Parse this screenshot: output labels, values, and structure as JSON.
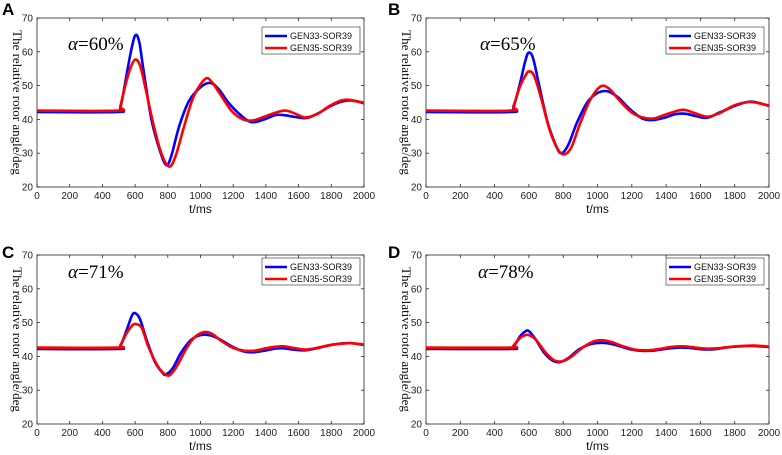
{
  "chart_data": [
    {
      "panel_label": "A",
      "type": "line",
      "annotation": "α=60%",
      "xlabel": "t/ms",
      "ylabel": "The relative rotor angle/deg",
      "xlim": [
        0,
        2000
      ],
      "ylim": [
        20,
        70
      ],
      "xticks": [
        "0",
        "200",
        "400",
        "600",
        "800",
        "1000",
        "1200",
        "1400",
        "1600",
        "1800",
        "2000"
      ],
      "yticks": [
        "20",
        "30",
        "40",
        "50",
        "60",
        "70"
      ],
      "series": [
        {
          "name": "GEN33-SOR39",
          "color": "#0000ff",
          "points": [
            [
              0,
              42.2
            ],
            [
              490,
              42.2
            ],
            [
              510,
              43.5
            ],
            [
              540,
              51
            ],
            [
              570,
              59
            ],
            [
              600,
              64.8
            ],
            [
              625,
              63
            ],
            [
              650,
              55
            ],
            [
              700,
              40
            ],
            [
              750,
              31
            ],
            [
              790,
              26.5
            ],
            [
              820,
              29
            ],
            [
              870,
              38
            ],
            [
              930,
              45.5
            ],
            [
              1000,
              49.5
            ],
            [
              1060,
              50.8
            ],
            [
              1110,
              49
            ],
            [
              1170,
              45
            ],
            [
              1240,
              41.5
            ],
            [
              1310,
              39.2
            ],
            [
              1390,
              40
            ],
            [
              1460,
              41.3
            ],
            [
              1520,
              41.2
            ],
            [
              1580,
              40.7
            ],
            [
              1650,
              40.4
            ],
            [
              1720,
              41.8
            ],
            [
              1790,
              43.8
            ],
            [
              1860,
              45.2
            ],
            [
              1920,
              45.6
            ],
            [
              2000,
              44.8
            ]
          ]
        },
        {
          "name": "GEN35-SOR39",
          "color": "#ff0000",
          "points": [
            [
              0,
              42.6
            ],
            [
              490,
              42.6
            ],
            [
              510,
              44
            ],
            [
              540,
              50
            ],
            [
              570,
              55
            ],
            [
              600,
              57.7
            ],
            [
              630,
              56
            ],
            [
              660,
              50
            ],
            [
              710,
              39
            ],
            [
              760,
              30
            ],
            [
              810,
              26
            ],
            [
              850,
              29.5
            ],
            [
              900,
              38
            ],
            [
              960,
              47
            ],
            [
              1030,
              52
            ],
            [
              1070,
              51
            ],
            [
              1120,
              47.5
            ],
            [
              1190,
              42.5
            ],
            [
              1260,
              40
            ],
            [
              1320,
              39.7
            ],
            [
              1390,
              40.8
            ],
            [
              1460,
              42
            ],
            [
              1520,
              42.6
            ],
            [
              1580,
              41.7
            ],
            [
              1640,
              40.6
            ],
            [
              1710,
              41.5
            ],
            [
              1790,
              44
            ],
            [
              1860,
              45.6
            ],
            [
              1910,
              45.8
            ],
            [
              2000,
              44.9
            ]
          ]
        }
      ]
    },
    {
      "panel_label": "B",
      "type": "line",
      "annotation": "α=65%",
      "xlabel": "t/ms",
      "ylabel": "The relative rotor angle/deg",
      "xlim": [
        0,
        2000
      ],
      "ylim": [
        20,
        70
      ],
      "xticks": [
        "0",
        "200",
        "400",
        "600",
        "800",
        "1000",
        "1200",
        "1400",
        "1600",
        "1800",
        "2000"
      ],
      "yticks": [
        "20",
        "30",
        "40",
        "50",
        "60",
        "70"
      ],
      "series": [
        {
          "name": "GEN33-SOR39",
          "color": "#0000ff",
          "points": [
            [
              0,
              42.2
            ],
            [
              490,
              42.2
            ],
            [
              510,
              43.5
            ],
            [
              550,
              51
            ],
            [
              580,
              57.5
            ],
            [
              600,
              59.8
            ],
            [
              625,
              58
            ],
            [
              660,
              50
            ],
            [
              710,
              39
            ],
            [
              760,
              32
            ],
            [
              790,
              30
            ],
            [
              830,
              32.5
            ],
            [
              880,
              39
            ],
            [
              940,
              45
            ],
            [
              1000,
              47.8
            ],
            [
              1060,
              48.3
            ],
            [
              1120,
              46.5
            ],
            [
              1190,
              43
            ],
            [
              1260,
              40.3
            ],
            [
              1320,
              39.8
            ],
            [
              1390,
              40.5
            ],
            [
              1450,
              41.5
            ],
            [
              1510,
              41.7
            ],
            [
              1570,
              41
            ],
            [
              1640,
              40.5
            ],
            [
              1710,
              42
            ],
            [
              1790,
              43.8
            ],
            [
              1860,
              45
            ],
            [
              1910,
              45.2
            ],
            [
              2000,
              44
            ]
          ]
        },
        {
          "name": "GEN35-SOR39",
          "color": "#ff0000",
          "points": [
            [
              0,
              42.6
            ],
            [
              490,
              42.6
            ],
            [
              510,
              44
            ],
            [
              550,
              50
            ],
            [
              580,
              53
            ],
            [
              600,
              54.2
            ],
            [
              630,
              53
            ],
            [
              670,
              46.5
            ],
            [
              720,
              37
            ],
            [
              770,
              31
            ],
            [
              810,
              29.7
            ],
            [
              850,
              32
            ],
            [
              900,
              39
            ],
            [
              960,
              46
            ],
            [
              1020,
              49.8
            ],
            [
              1070,
              49
            ],
            [
              1130,
              45.5
            ],
            [
              1200,
              42
            ],
            [
              1270,
              40.5
            ],
            [
              1330,
              40.3
            ],
            [
              1400,
              41.5
            ],
            [
              1470,
              42.6
            ],
            [
              1510,
              42.8
            ],
            [
              1570,
              41.8
            ],
            [
              1640,
              40.8
            ],
            [
              1710,
              41.8
            ],
            [
              1790,
              44
            ],
            [
              1860,
              45
            ],
            [
              1910,
              45.1
            ],
            [
              2000,
              44.1
            ]
          ]
        }
      ]
    },
    {
      "panel_label": "C",
      "type": "line",
      "annotation": "α=71%",
      "xlabel": "t/ms",
      "ylabel": "The relative rotor angle/deg",
      "xlim": [
        0,
        2000
      ],
      "ylim": [
        20,
        70
      ],
      "xticks": [
        "0",
        "200",
        "400",
        "600",
        "800",
        "1000",
        "1200",
        "1400",
        "1600",
        "1800",
        "2000"
      ],
      "yticks": [
        "20",
        "30",
        "40",
        "50",
        "60",
        "70"
      ],
      "series": [
        {
          "name": "GEN33-SOR39",
          "color": "#0000ff",
          "points": [
            [
              0,
              42.2
            ],
            [
              490,
              42.2
            ],
            [
              510,
              43
            ],
            [
              550,
              48
            ],
            [
              580,
              52
            ],
            [
              600,
              52.8
            ],
            [
              630,
              51
            ],
            [
              670,
              45
            ],
            [
              720,
              38.5
            ],
            [
              770,
              35
            ],
            [
              790,
              34.7
            ],
            [
              830,
              36.5
            ],
            [
              880,
              41
            ],
            [
              940,
              44.8
            ],
            [
              1000,
              46.3
            ],
            [
              1060,
              46.2
            ],
            [
              1120,
              45
            ],
            [
              1190,
              43
            ],
            [
              1260,
              41.5
            ],
            [
              1320,
              41.2
            ],
            [
              1390,
              41.7
            ],
            [
              1460,
              42.3
            ],
            [
              1510,
              42.4
            ],
            [
              1570,
              42
            ],
            [
              1640,
              41.8
            ],
            [
              1710,
              42.4
            ],
            [
              1790,
              43.3
            ],
            [
              1860,
              43.8
            ],
            [
              1920,
              43.9
            ],
            [
              2000,
              43.4
            ]
          ]
        },
        {
          "name": "GEN35-SOR39",
          "color": "#ff0000",
          "points": [
            [
              0,
              42.6
            ],
            [
              490,
              42.6
            ],
            [
              510,
              43.3
            ],
            [
              550,
              47
            ],
            [
              580,
              49
            ],
            [
              600,
              49.6
            ],
            [
              640,
              48.5
            ],
            [
              680,
              43
            ],
            [
              740,
              37
            ],
            [
              790,
              34.5
            ],
            [
              820,
              34.8
            ],
            [
              860,
              37.5
            ],
            [
              910,
              42
            ],
            [
              960,
              45.5
            ],
            [
              1020,
              47.2
            ],
            [
              1070,
              46.7
            ],
            [
              1130,
              44.5
            ],
            [
              1200,
              42.5
            ],
            [
              1270,
              41.7
            ],
            [
              1330,
              41.7
            ],
            [
              1400,
              42.4
            ],
            [
              1470,
              42.9
            ],
            [
              1510,
              43
            ],
            [
              1570,
              42.5
            ],
            [
              1640,
              42
            ],
            [
              1710,
              42.5
            ],
            [
              1790,
              43.3
            ],
            [
              1860,
              43.8
            ],
            [
              1920,
              43.9
            ],
            [
              2000,
              43.5
            ]
          ]
        }
      ]
    },
    {
      "panel_label": "D",
      "type": "line",
      "annotation": "α=78%",
      "xlabel": "t/ms",
      "ylabel": "The relative rotor angle/deg",
      "xlim": [
        0,
        2000
      ],
      "ylim": [
        20,
        70
      ],
      "xticks": [
        "0",
        "200",
        "400",
        "600",
        "800",
        "1000",
        "1200",
        "1400",
        "1600",
        "1800",
        "2000"
      ],
      "yticks": [
        "20",
        "30",
        "40",
        "50",
        "60",
        "70"
      ],
      "series": [
        {
          "name": "GEN33-SOR39",
          "color": "#0000ff",
          "points": [
            [
              0,
              42.2
            ],
            [
              490,
              42.2
            ],
            [
              510,
              42.8
            ],
            [
              550,
              46
            ],
            [
              580,
              47.4
            ],
            [
              600,
              47.5
            ],
            [
              640,
              45
            ],
            [
              690,
              41
            ],
            [
              740,
              38.7
            ],
            [
              780,
              38.3
            ],
            [
              830,
              39.5
            ],
            [
              890,
              42
            ],
            [
              950,
              43.5
            ],
            [
              1010,
              44
            ],
            [
              1070,
              43.8
            ],
            [
              1130,
              43
            ],
            [
              1200,
              42
            ],
            [
              1270,
              41.6
            ],
            [
              1340,
              41.8
            ],
            [
              1410,
              42.3
            ],
            [
              1480,
              42.6
            ],
            [
              1540,
              42.5
            ],
            [
              1610,
              42.1
            ],
            [
              1680,
              42.1
            ],
            [
              1750,
              42.6
            ],
            [
              1830,
              43
            ],
            [
              1900,
              43.1
            ],
            [
              2000,
              42.8
            ]
          ]
        },
        {
          "name": "GEN35-SOR39",
          "color": "#ff0000",
          "points": [
            [
              0,
              42.6
            ],
            [
              490,
              42.6
            ],
            [
              510,
              43.2
            ],
            [
              550,
              45.5
            ],
            [
              580,
              46.3
            ],
            [
              600,
              46.3
            ],
            [
              640,
              45
            ],
            [
              700,
              41
            ],
            [
              750,
              38.8
            ],
            [
              800,
              38.6
            ],
            [
              850,
              40
            ],
            [
              910,
              42.5
            ],
            [
              970,
              44.3
            ],
            [
              1020,
              44.8
            ],
            [
              1080,
              44.3
            ],
            [
              1150,
              43
            ],
            [
              1220,
              42
            ],
            [
              1290,
              41.8
            ],
            [
              1360,
              42.2
            ],
            [
              1430,
              42.8
            ],
            [
              1500,
              43
            ],
            [
              1560,
              42.7
            ],
            [
              1630,
              42.3
            ],
            [
              1700,
              42.4
            ],
            [
              1770,
              42.8
            ],
            [
              1850,
              43.1
            ],
            [
              1910,
              43.2
            ],
            [
              2000,
              42.9
            ]
          ]
        }
      ]
    }
  ]
}
